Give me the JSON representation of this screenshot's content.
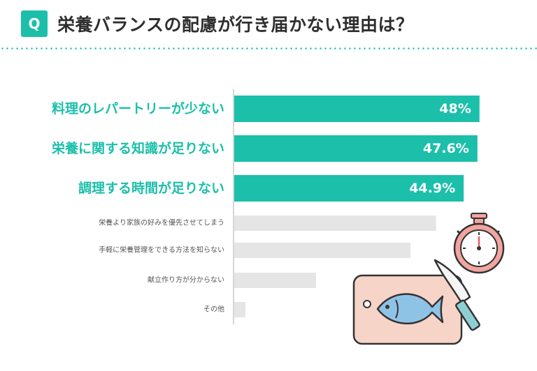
{
  "header": {
    "badge": "Q",
    "title": "栄養バランスの配慮が行き届かない理由は？"
  },
  "colors": {
    "accent": "#1bbfaa",
    "muted_bar": "#e5e5e5"
  },
  "chart_data": {
    "type": "bar",
    "orientation": "horizontal",
    "categories": [
      "料理のレパートリーが少ない",
      "栄養に関する知識が足りない",
      "調理する時間が足りない",
      "栄養より家族の好みを優先させてしまう",
      "手軽に栄養管理をできる方法を知らない",
      "献立作り方が分からない",
      "その他"
    ],
    "values": [
      48,
      47.6,
      44.9,
      39.5,
      34.5,
      16,
      2.2
    ],
    "value_labels": [
      "48%",
      "47.6%",
      "44.9%",
      "",
      "",
      "",
      ""
    ],
    "highlighted": [
      true,
      true,
      true,
      false,
      false,
      false,
      false
    ],
    "xlim": [
      0,
      52
    ]
  },
  "illustration": {
    "icons": [
      "stopwatch-icon",
      "cutting-board-icon",
      "fish-icon",
      "kitchen-knife-icon"
    ]
  }
}
